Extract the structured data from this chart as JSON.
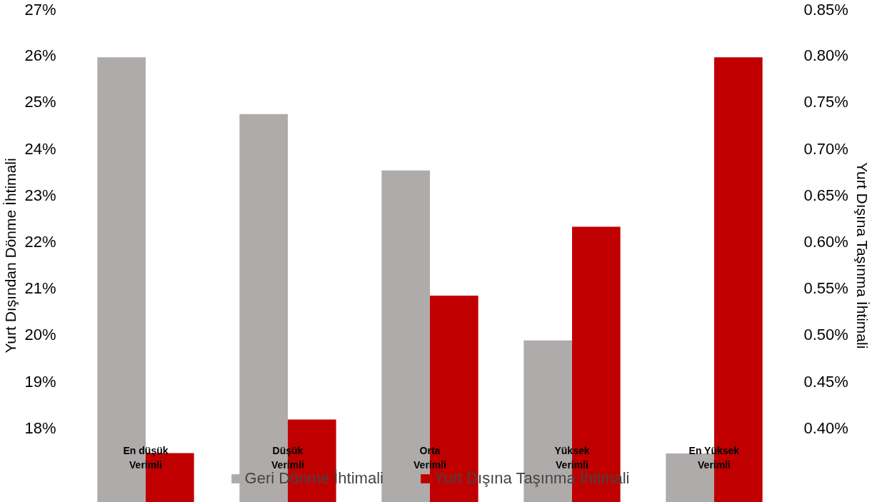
{
  "chart_data": {
    "type": "bar",
    "ylabel": "Yurt Dışından Dönme İhtimali",
    "y2label": "Yurt Dışına Taşınma İhtimali",
    "categories": [
      "En düşük\nVerimli",
      "Düşük\nVerimli",
      "Orta\nVerimli",
      "Yüksek\nVerimli",
      "En Yüksek\nVerimli"
    ],
    "series": [
      {
        "name": "Geri Dönme İhtimali",
        "color": "#afabab",
        "values": [
          25.96,
          24.74,
          23.53,
          19.88,
          17.45
        ]
      },
      {
        "name": "Yurt Dışına Taşınma İhtimali",
        "color": "#c00000",
        "axis": "y2",
        "values": [
          0.373,
          0.409,
          0.542,
          0.616,
          0.798
        ]
      }
    ],
    "ylim": [
      16.4,
      27
    ],
    "yticks": [
      {
        "value": 18,
        "label": "18%"
      },
      {
        "value": 19,
        "label": "19%"
      },
      {
        "value": 20,
        "label": "20%"
      },
      {
        "value": 21,
        "label": "21%"
      },
      {
        "value": 22,
        "label": "22%"
      },
      {
        "value": 23,
        "label": "23%"
      },
      {
        "value": 24,
        "label": "24%"
      },
      {
        "value": 25,
        "label": "25%"
      },
      {
        "value": 26,
        "label": "26%"
      },
      {
        "value": 27,
        "label": "27%"
      }
    ],
    "y2lim": [
      0.32,
      0.85
    ],
    "y2ticks": [
      {
        "value": 0.4,
        "label": "0.40%"
      },
      {
        "value": 0.45,
        "label": "0.45%"
      },
      {
        "value": 0.5,
        "label": "0.50%"
      },
      {
        "value": 0.55,
        "label": "0.55%"
      },
      {
        "value": 0.6,
        "label": "0.60%"
      },
      {
        "value": 0.65,
        "label": "0.65%"
      },
      {
        "value": 0.7,
        "label": "0.70%"
      },
      {
        "value": 0.75,
        "label": "0.75%"
      },
      {
        "value": 0.8,
        "label": "0.80%"
      },
      {
        "value": 0.85,
        "label": "0.85%"
      }
    ],
    "legend": "bottom",
    "grid": false
  }
}
